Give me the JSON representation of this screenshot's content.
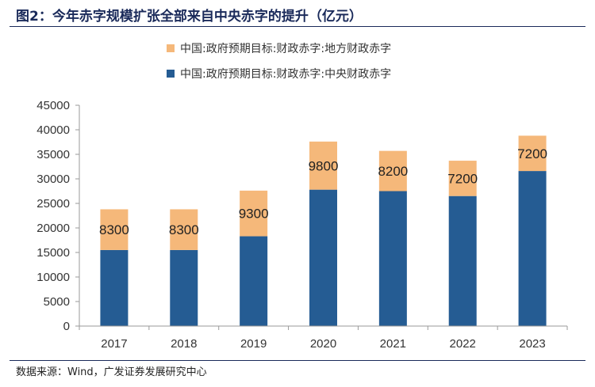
{
  "figure": {
    "title": "图2：今年赤字规模扩张全部来自中央赤字的提升（亿元）",
    "source": "数据来源：Wind，广发证券发展研究中心"
  },
  "chart_data": {
    "type": "bar",
    "stacked": true,
    "categories": [
      "2017",
      "2018",
      "2019",
      "2020",
      "2021",
      "2022",
      "2023"
    ],
    "series": [
      {
        "name": "中国:政府预期目标:财政赤字:中央财政赤字",
        "color": "#255c93",
        "values": [
          15500,
          15500,
          18300,
          27800,
          27500,
          26500,
          31600
        ]
      },
      {
        "name": "中国:政府预期目标:财政赤字:地方财政赤字",
        "color": "#f5b87a",
        "values": [
          8300,
          8300,
          9300,
          9800,
          8200,
          7200,
          7200
        ]
      }
    ],
    "data_labels": [
      "8300",
      "8300",
      "9300",
      "9800",
      "8200",
      "7200",
      "7200"
    ],
    "ylim": [
      0,
      45000
    ],
    "yticks": [
      "0",
      "5000",
      "10000",
      "15000",
      "20000",
      "25000",
      "30000",
      "35000",
      "40000",
      "45000"
    ],
    "grid": false,
    "legend": "top",
    "xlabel": "",
    "ylabel": ""
  }
}
